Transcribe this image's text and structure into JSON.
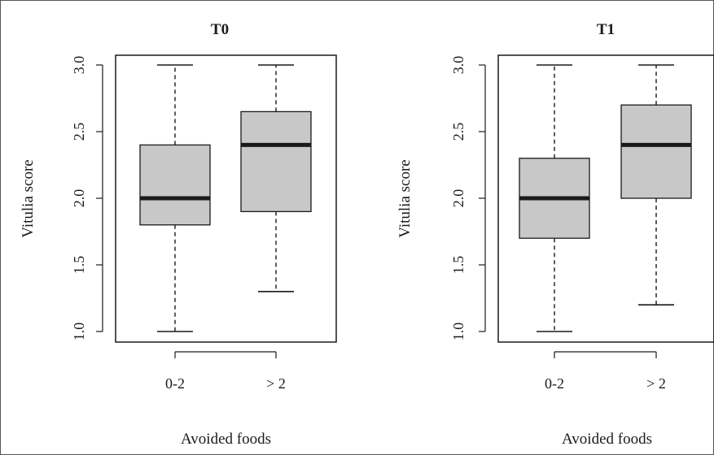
{
  "figure": {
    "background": "#ffffff",
    "border_color": "#555555",
    "box_fill": "#c8c8c8",
    "line_color": "#1a1a1a"
  },
  "chart_data": [
    {
      "type": "boxplot",
      "title": "T0",
      "xlabel": "Avoided foods",
      "ylabel": "Vitulia score",
      "ylim": [
        1.0,
        3.0
      ],
      "yticks": [
        "1.0",
        "1.5",
        "2.0",
        "2.5",
        "3.0"
      ],
      "ytick_values": [
        1.0,
        1.5,
        2.0,
        2.5,
        3.0
      ],
      "categories": [
        "0-2",
        "> 2"
      ],
      "boxes": [
        {
          "category": "0-2",
          "min": 1.0,
          "q1": 1.8,
          "median": 2.0,
          "q3": 2.4,
          "max": 3.0
        },
        {
          "category": "> 2",
          "min": 1.3,
          "q1": 1.9,
          "median": 2.4,
          "q3": 2.65,
          "max": 3.0
        }
      ],
      "grid": false
    },
    {
      "type": "boxplot",
      "title": "T1",
      "xlabel": "Avoided foods",
      "ylabel": "Vitulia score",
      "ylim": [
        1.0,
        3.0
      ],
      "yticks": [
        "1.0",
        "1.5",
        "2.0",
        "2.5",
        "3.0"
      ],
      "ytick_values": [
        1.0,
        1.5,
        2.0,
        2.5,
        3.0
      ],
      "categories": [
        "0-2",
        "> 2"
      ],
      "boxes": [
        {
          "category": "0-2",
          "min": 1.0,
          "q1": 1.7,
          "median": 2.0,
          "q3": 2.3,
          "max": 3.0
        },
        {
          "category": "> 2",
          "min": 1.2,
          "q1": 2.0,
          "median": 2.4,
          "q3": 2.7,
          "max": 3.0
        }
      ],
      "grid": false
    }
  ]
}
